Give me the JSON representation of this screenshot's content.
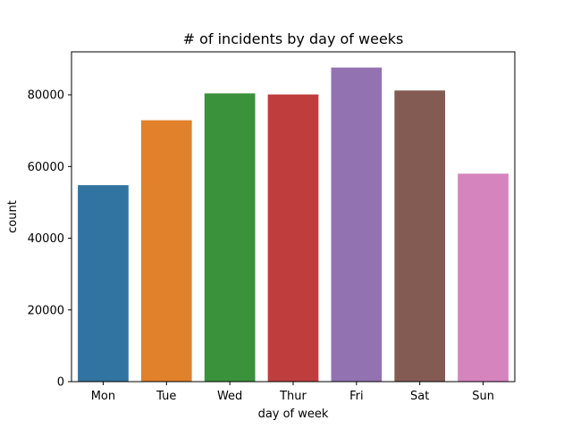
{
  "chart_data": {
    "type": "bar",
    "title": "# of incidents by day of weeks",
    "xlabel": "day of week",
    "ylabel": "count",
    "categories": [
      "Mon",
      "Tue",
      "Wed",
      "Thur",
      "Fri",
      "Sat",
      "Sun"
    ],
    "values": [
      54800,
      72900,
      80400,
      80100,
      87600,
      81200,
      58000
    ],
    "colors": [
      "#3274a1",
      "#e1812c",
      "#3a923a",
      "#c03d3e",
      "#9372b2",
      "#845b53",
      "#d684bd"
    ],
    "ylim": [
      0,
      91980
    ],
    "yticks": [
      0,
      20000,
      40000,
      60000,
      80000
    ],
    "ytick_labels": [
      "0",
      "20000",
      "40000",
      "60000",
      "80000"
    ],
    "grid": false,
    "legend": "none"
  }
}
